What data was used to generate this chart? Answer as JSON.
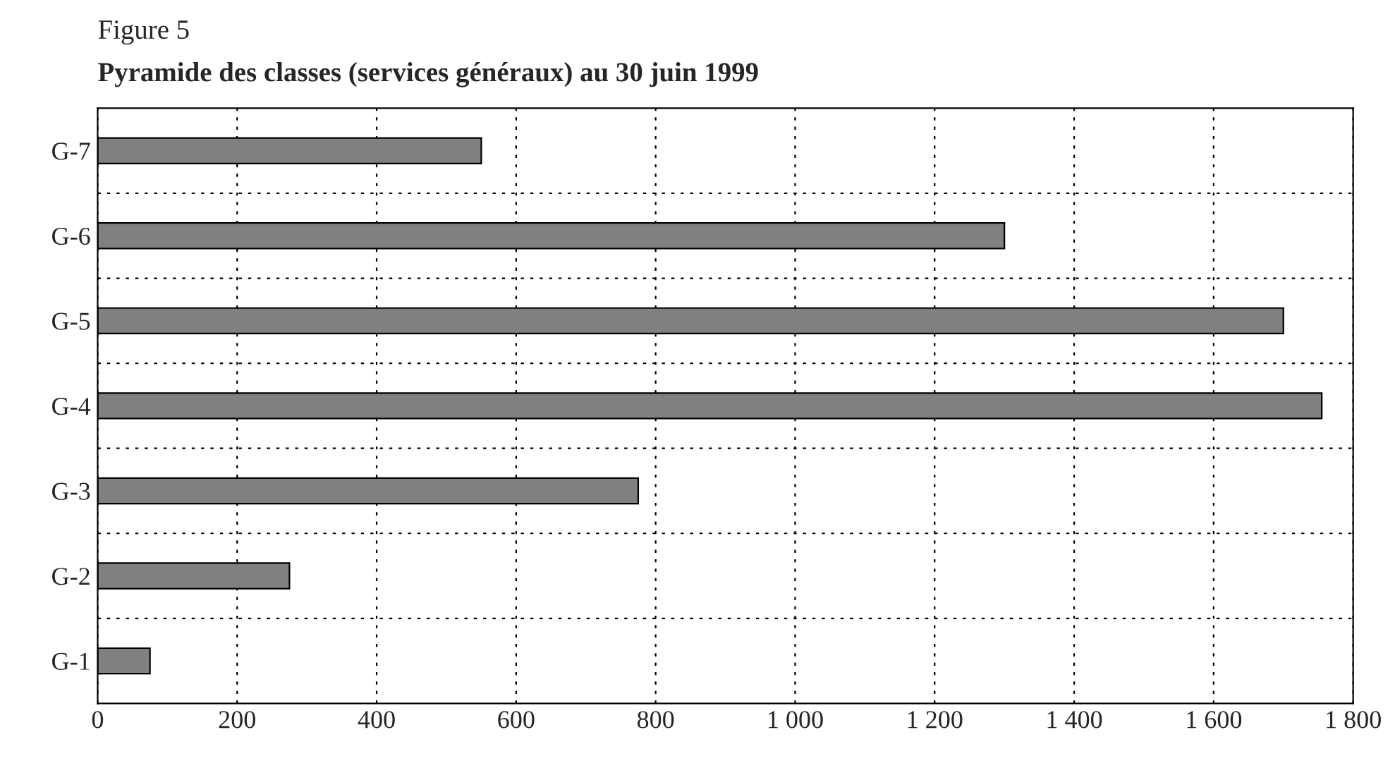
{
  "chart_data": {
    "type": "bar",
    "orientation": "horizontal",
    "title": "Pyramide des classes (services généraux) au 30 juin 1999",
    "subtitle": "Figure 5",
    "categories": [
      "G-7",
      "G-6",
      "G-5",
      "G-4",
      "G-3",
      "G-2",
      "G-1"
    ],
    "values": [
      550,
      1300,
      1700,
      1755,
      775,
      275,
      75
    ],
    "color": "#808080",
    "xlim": [
      0,
      1800
    ],
    "xticks": [
      0,
      200,
      400,
      600,
      800,
      {
        "value": 1000,
        "label": "1 000"
      },
      {
        "value": 1200,
        "label": "1 200"
      },
      {
        "value": 1400,
        "label": "1 400"
      },
      {
        "value": 1600,
        "label": "1 600"
      },
      {
        "value": 1800,
        "label": "1 800"
      }
    ],
    "grid": true
  }
}
